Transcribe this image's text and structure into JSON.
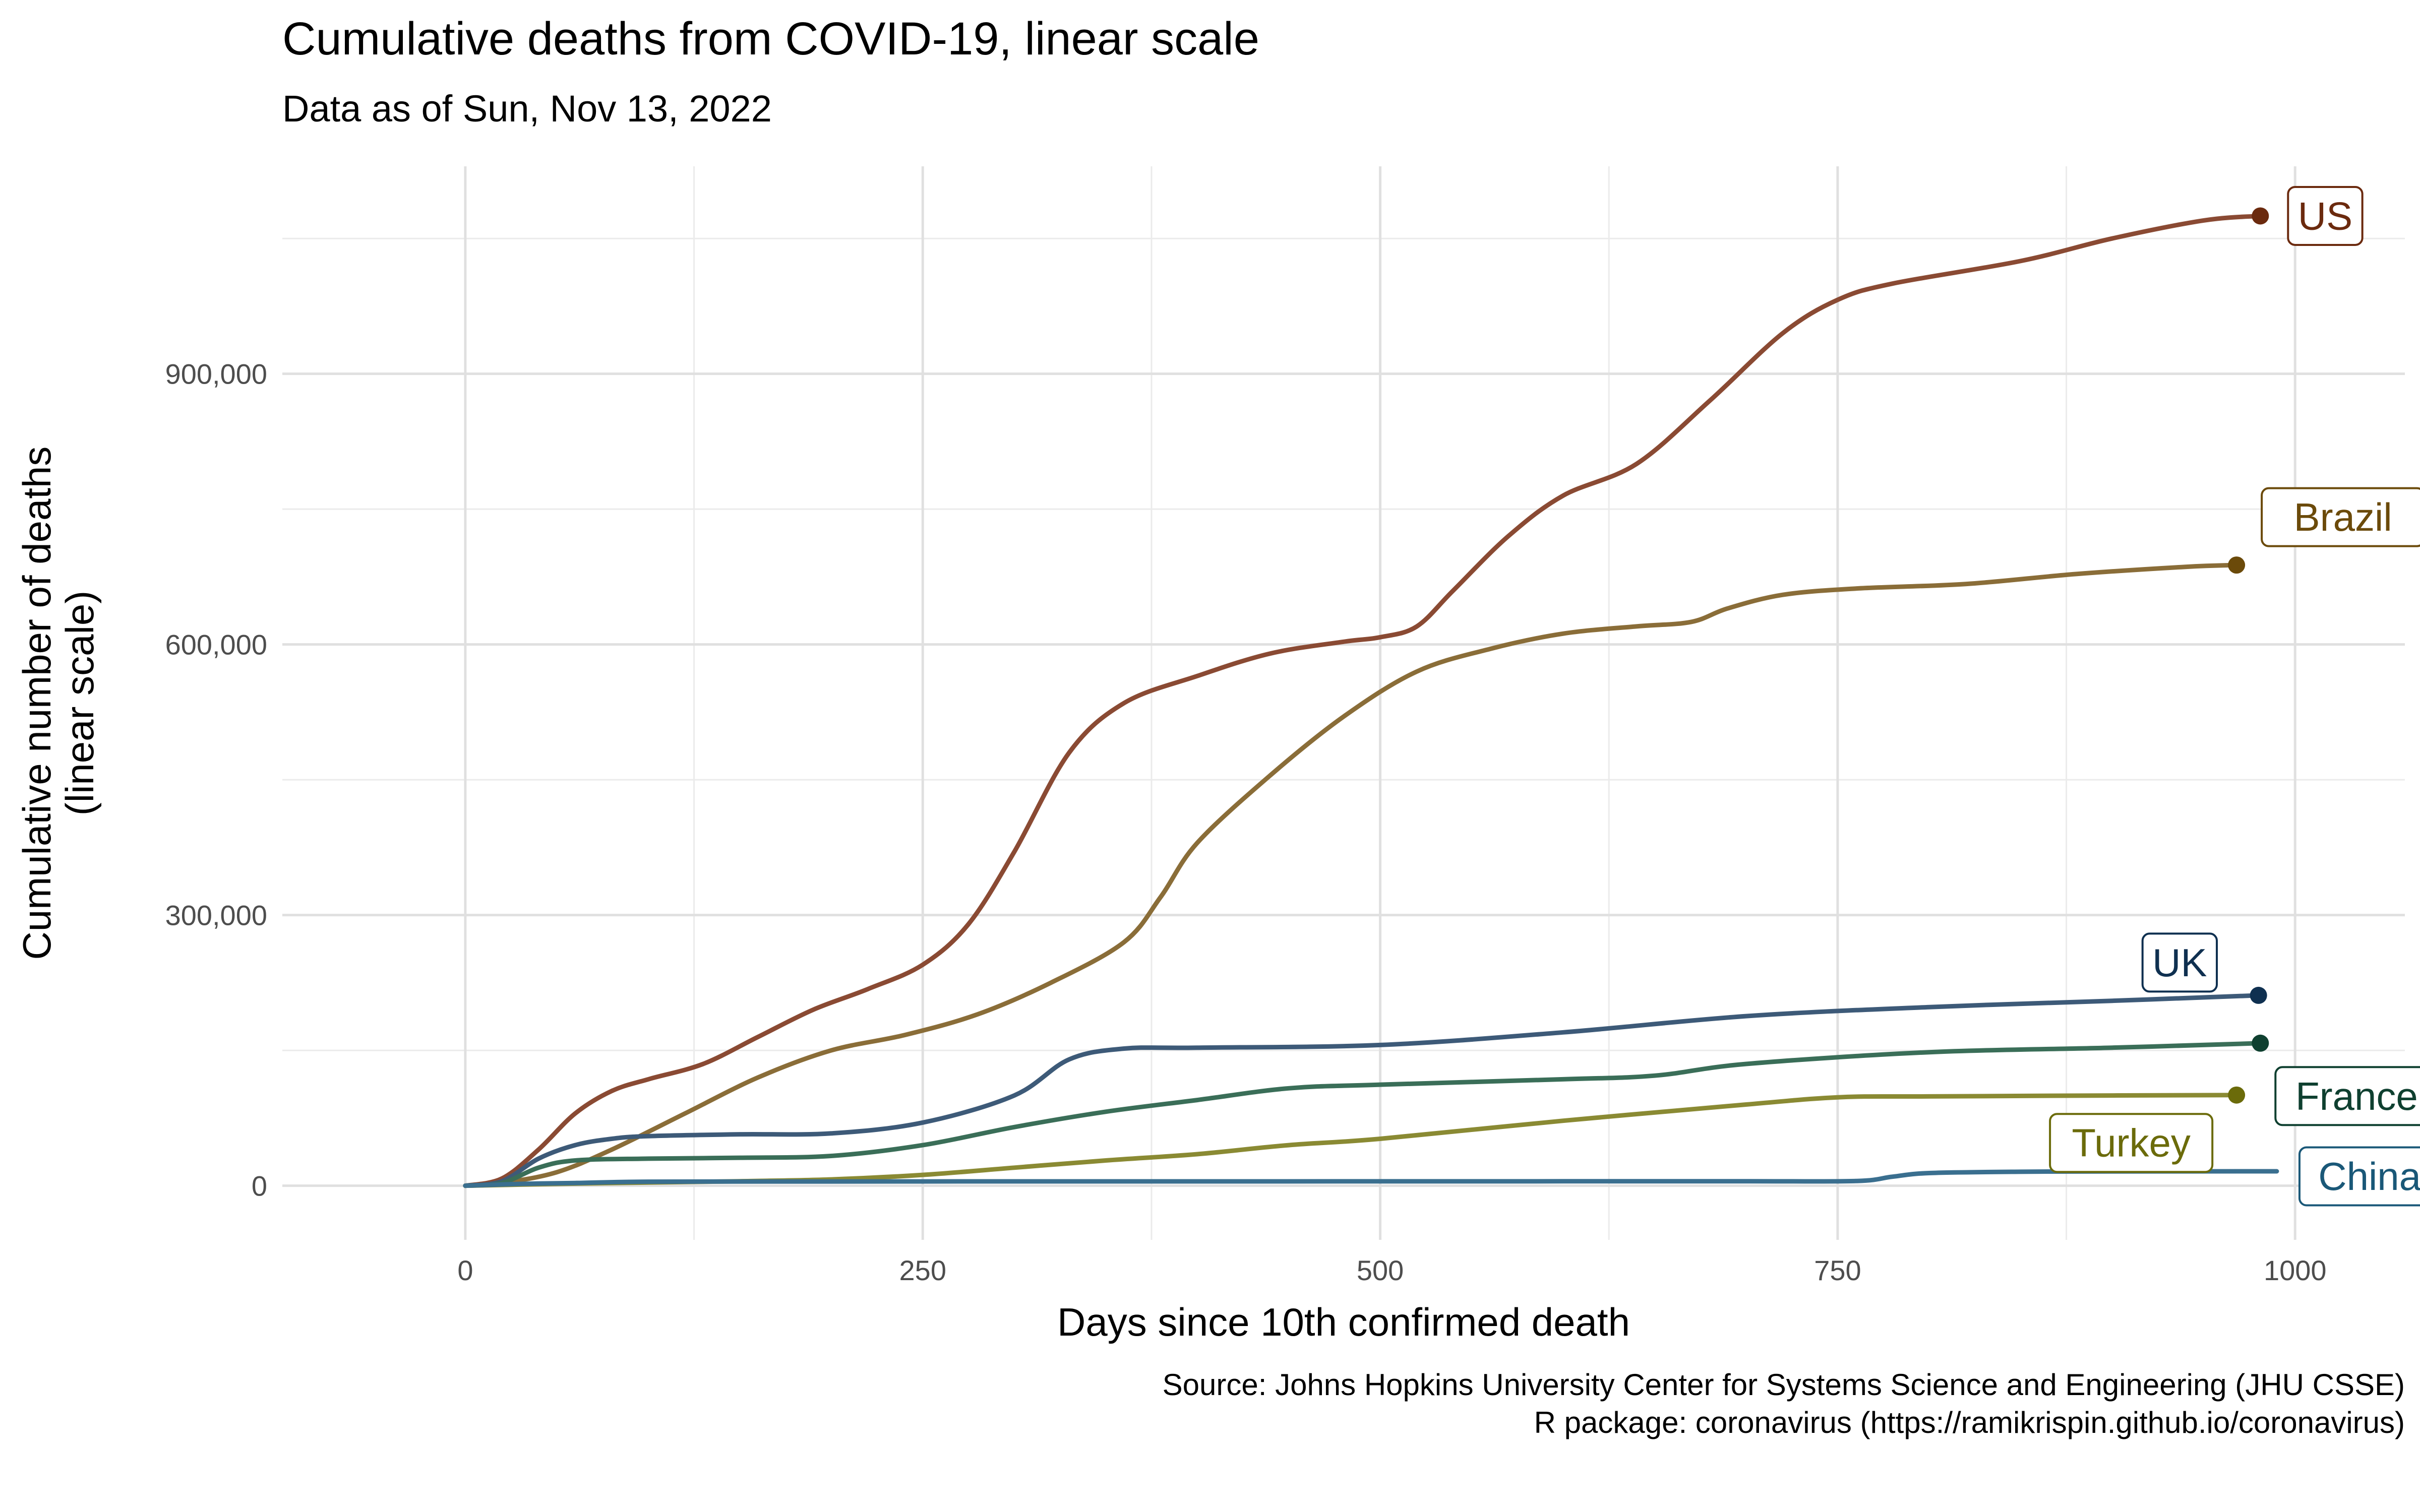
{
  "chart_data": {
    "type": "line",
    "title": "Cumulative deaths from COVID-19, linear scale",
    "subtitle": "Data as of Sun, Nov 13, 2022",
    "xlabel": "Days since 10th confirmed death",
    "ylabel": [
      "Cumulative number of deaths",
      "(linear scale)"
    ],
    "xlim": [
      -100,
      1060
    ],
    "ylim": [
      -60000,
      1130000
    ],
    "x_ticks": [
      0,
      250,
      500,
      750,
      1000
    ],
    "x_tick_labels": [
      "0",
      "250",
      "500",
      "750",
      "1000"
    ],
    "y_ticks": [
      0,
      300000,
      600000,
      900000
    ],
    "y_tick_labels": [
      "0",
      "300,000",
      "600,000",
      "900,000"
    ],
    "grid": true,
    "caption": [
      "Source: Johns Hopkins University Center for Systems Science and Engineering (JHU CSSE)",
      "R package: coronavirus (https://ramikrispin.github.io/coronavirus)"
    ],
    "series": [
      {
        "name": "US",
        "line_color": "#8a4a33",
        "label_color": "#6b2a0e",
        "x": [
          0,
          20,
          40,
          60,
          80,
          100,
          130,
          160,
          190,
          220,
          250,
          275,
          300,
          330,
          360,
          400,
          440,
          480,
          500,
          520,
          540,
          570,
          600,
          640,
          680,
          720,
          750,
          780,
          850,
          900,
          950,
          981
        ],
        "y": [
          0,
          8000,
          40000,
          80000,
          105000,
          118000,
          135000,
          165000,
          195000,
          218000,
          245000,
          290000,
          370000,
          480000,
          535000,
          565000,
          590000,
          603000,
          608000,
          620000,
          660000,
          720000,
          765000,
          800000,
          870000,
          945000,
          982000,
          1000000,
          1025000,
          1050000,
          1070000,
          1075000
        ],
        "end_point": [
          981,
          1075000
        ],
        "label_anchor": "right"
      },
      {
        "name": "Brazil",
        "line_color": "#8a6d38",
        "label_color": "#6b4a0a",
        "x": [
          0,
          20,
          50,
          80,
          120,
          160,
          200,
          240,
          280,
          320,
          360,
          380,
          400,
          440,
          480,
          520,
          560,
          600,
          640,
          670,
          690,
          720,
          760,
          820,
          880,
          940,
          968
        ],
        "y": [
          0,
          3000,
          15000,
          40000,
          80000,
          120000,
          150000,
          167000,
          190000,
          225000,
          270000,
          320000,
          380000,
          455000,
          520000,
          570000,
          595000,
          612000,
          620000,
          625000,
          640000,
          655000,
          662000,
          667000,
          678000,
          686000,
          688000
        ],
        "end_point": [
          968,
          688000
        ],
        "label_anchor": "above-right"
      },
      {
        "name": "UK",
        "line_color": "#3d5a78",
        "label_color": "#0f3050",
        "x": [
          0,
          20,
          40,
          60,
          80,
          100,
          150,
          200,
          250,
          300,
          330,
          360,
          400,
          500,
          600,
          700,
          800,
          900,
          980
        ],
        "y": [
          0,
          5000,
          30000,
          45000,
          52000,
          55000,
          57000,
          58000,
          70000,
          100000,
          140000,
          152000,
          153000,
          156000,
          170000,
          188000,
          198000,
          205000,
          211000
        ],
        "end_point": [
          980,
          211000
        ],
        "label_anchor": "above-left"
      },
      {
        "name": "France",
        "line_color": "#3a6e58",
        "label_color": "#0f4030",
        "x": [
          0,
          20,
          40,
          60,
          100,
          150,
          200,
          250,
          300,
          350,
          400,
          450,
          500,
          600,
          650,
          700,
          800,
          900,
          981
        ],
        "y": [
          0,
          3000,
          20000,
          28000,
          30000,
          31000,
          33000,
          45000,
          65000,
          82000,
          95000,
          108000,
          112000,
          118000,
          122000,
          135000,
          148000,
          153000,
          158000
        ],
        "end_point": [
          981,
          158000
        ],
        "label_anchor": "below-right"
      },
      {
        "name": "Turkey",
        "line_color": "#8a8a33",
        "label_color": "#6b6b0a",
        "x": [
          0,
          50,
          100,
          150,
          200,
          250,
          300,
          350,
          400,
          450,
          500,
          600,
          700,
          750,
          800,
          900,
          968
        ],
        "y": [
          0,
          2000,
          3500,
          5000,
          7000,
          12000,
          20000,
          28000,
          35000,
          45000,
          52000,
          72000,
          90000,
          98000,
          99000,
          100000,
          100500
        ],
        "end_point": [
          968,
          100500
        ],
        "label_anchor": "below-left"
      },
      {
        "name": "China",
        "line_color": "#3a6f8f",
        "label_color": "#1a5878",
        "x": [
          0,
          30,
          60,
          100,
          200,
          300,
          400,
          500,
          600,
          700,
          760,
          780,
          800,
          850,
          900,
          990
        ],
        "y": [
          0,
          2000,
          3000,
          4500,
          4700,
          4800,
          4800,
          4850,
          4900,
          5000,
          5200,
          10000,
          14000,
          15500,
          15800,
          16000
        ],
        "end_point": null,
        "label_anchor": "end-right"
      }
    ]
  }
}
